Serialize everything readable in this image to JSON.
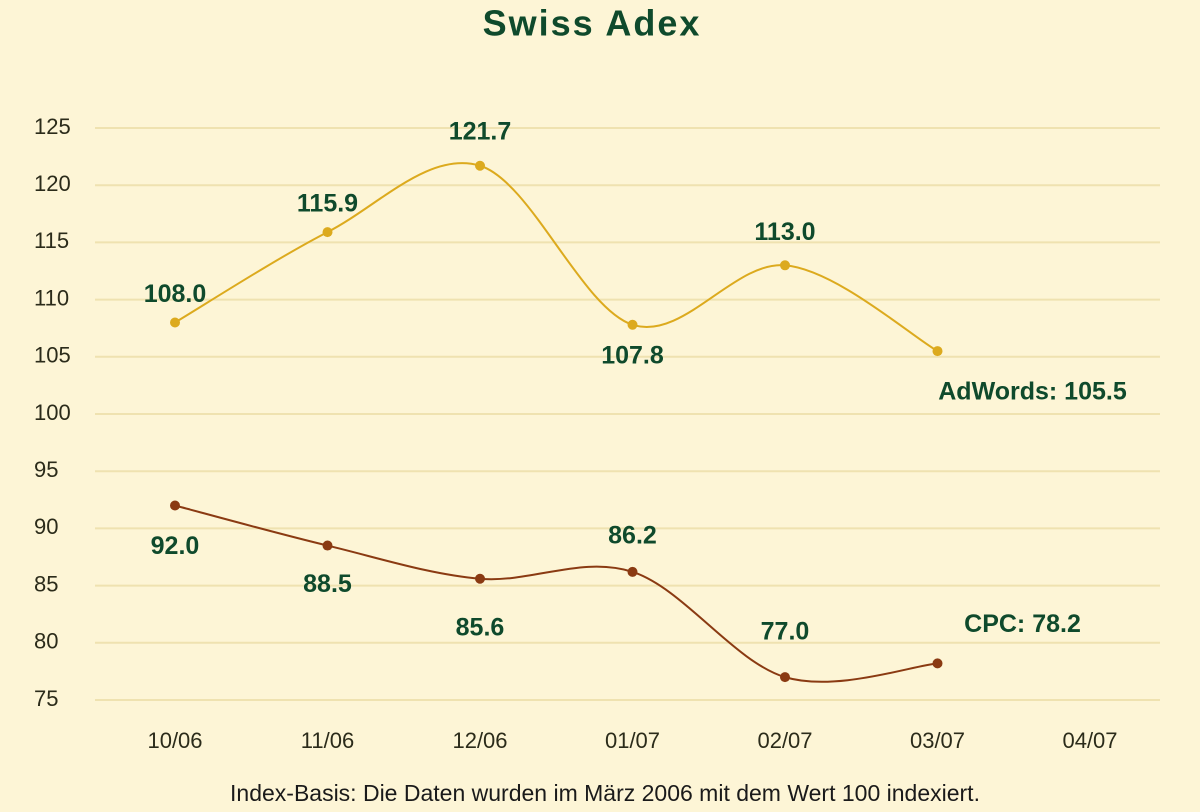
{
  "chart_data": {
    "type": "line",
    "title": "Swiss Adex",
    "categories": [
      "10/06",
      "11/06",
      "12/06",
      "01/07",
      "02/07",
      "03/07",
      "04/07"
    ],
    "series": [
      {
        "color": "#dcaa1e",
        "values": [
          108.0,
          115.9,
          121.7,
          107.8,
          113.0,
          105.5,
          null
        ],
        "value_labels": [
          "108.0",
          "115.9",
          "121.7",
          "107.8",
          "113.0",
          "AdWords: 105.5",
          null
        ]
      },
      {
        "color": "#8a3a12",
        "values": [
          92.0,
          88.5,
          85.6,
          86.2,
          77.0,
          78.2,
          null
        ],
        "value_labels": [
          "92.0",
          "88.5",
          "85.6",
          "86.2",
          "77.0",
          "CPC: 78.2",
          null
        ]
      }
    ],
    "ylim": [
      75,
      125
    ],
    "yticks": [
      75,
      80,
      85,
      90,
      95,
      100,
      105,
      110,
      115,
      120,
      125
    ],
    "grid": true,
    "note": "Index-Basis: Die Daten wurden im März 2006 mit dem Wert 100 indexiert."
  }
}
